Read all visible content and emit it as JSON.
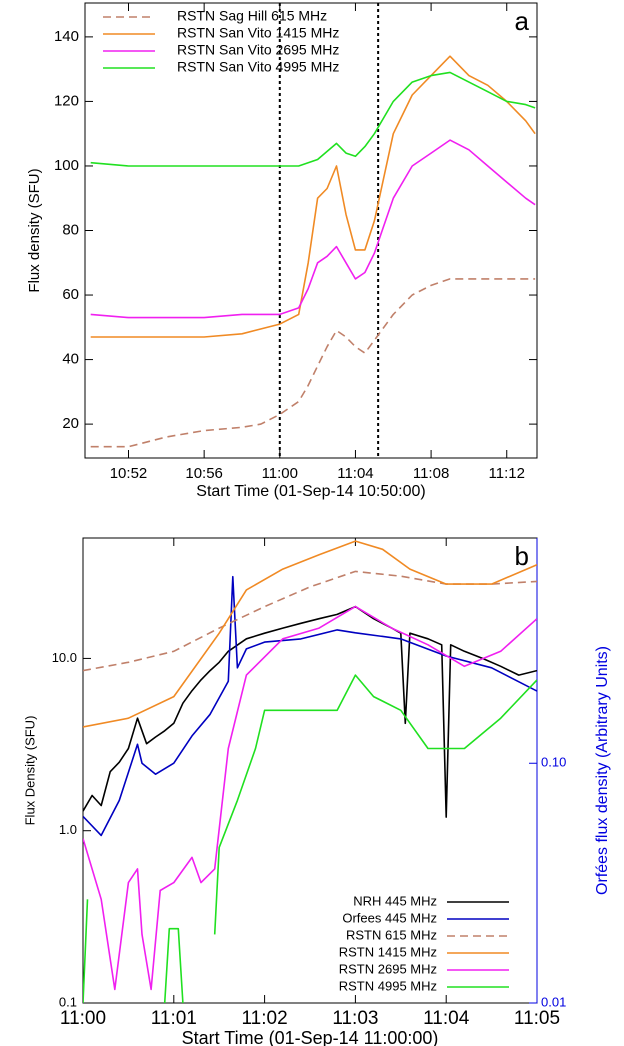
{
  "chart_data": [
    {
      "type": "line",
      "panel_label": "a",
      "xlabel": "Start Time (01-Sep-14 10:50:00)",
      "ylabel": "Flux density (SFU)",
      "xlim": [
        -0.3,
        23.6
      ],
      "ylim": [
        9.5,
        150.5
      ],
      "xticks": [
        {
          "value": 2,
          "label": "10:52"
        },
        {
          "value": 6,
          "label": "10:56"
        },
        {
          "value": 10,
          "label": "11:00"
        },
        {
          "value": 14,
          "label": "11:04"
        },
        {
          "value": 18,
          "label": "11:08"
        },
        {
          "value": 22,
          "label": "11:12"
        }
      ],
      "yticks": [
        20,
        40,
        60,
        80,
        100,
        120,
        140
      ],
      "vlines": [
        10,
        15.2
      ],
      "legend": "upper left",
      "series": [
        {
          "name": "RSTN Sag Hill 615 MHz",
          "color": "#c0806a",
          "linestyle": "dashed",
          "x": [
            0,
            2,
            4,
            6,
            8,
            9,
            10,
            11,
            11.5,
            12,
            12.5,
            13,
            13.5,
            14,
            14.5,
            15,
            16,
            17,
            18,
            19,
            20,
            21,
            22,
            23.5
          ],
          "values": [
            13,
            13,
            16,
            18,
            19,
            20,
            23,
            27,
            32,
            38,
            44,
            49,
            47,
            44,
            42,
            46,
            54,
            60,
            63,
            65,
            65,
            65,
            65,
            65
          ]
        },
        {
          "name": "RSTN San Vito 1415 MHz",
          "color": "#f08a24",
          "linestyle": "solid",
          "x": [
            0,
            2,
            4,
            6,
            8,
            10,
            11,
            11.5,
            12,
            12.5,
            13,
            13.5,
            14,
            14.5,
            15,
            16,
            17,
            18,
            19,
            20,
            21,
            22,
            23,
            23.5
          ],
          "values": [
            47,
            47,
            47,
            47,
            48,
            51,
            54,
            70,
            90,
            93,
            100,
            85,
            74,
            74,
            83,
            110,
            122,
            128,
            134,
            128,
            125,
            120,
            114,
            110
          ]
        },
        {
          "name": "RSTN San Vito 2695 MHz",
          "color": "#f020f0",
          "linestyle": "solid",
          "x": [
            0,
            2,
            4,
            6,
            8,
            10,
            11,
            11.5,
            12,
            12.5,
            13,
            13.5,
            14,
            14.5,
            15,
            16,
            17,
            18,
            19,
            20,
            21,
            22,
            23,
            23.5
          ],
          "values": [
            54,
            53,
            53,
            53,
            54,
            54,
            56,
            62,
            70,
            72,
            75,
            70,
            65,
            67,
            73,
            90,
            100,
            104,
            108,
            105,
            100,
            95,
            90,
            88
          ]
        },
        {
          "name": "RSTN San Vito 4995 MHz",
          "color": "#20e020",
          "linestyle": "solid",
          "x": [
            0,
            2,
            4,
            6,
            8,
            10,
            11,
            12,
            13,
            13.5,
            14,
            14.5,
            15,
            16,
            17,
            18,
            19,
            20,
            21,
            22,
            23,
            23.5
          ],
          "values": [
            101,
            100,
            100,
            100,
            100,
            100,
            100,
            102,
            107,
            104,
            103,
            106,
            110,
            120,
            126,
            128,
            129,
            126,
            123,
            120,
            119,
            118
          ]
        }
      ]
    },
    {
      "type": "line",
      "panel_label": "b",
      "xlabel": "Start Time (01-Sep-14 11:00:00)",
      "ylabel": "Flux Density (SFU)",
      "y2label": "Orfées flux density (Arbitrary Units)",
      "xlim": [
        0,
        5
      ],
      "ylim": [
        0.1,
        50
      ],
      "y2lim": [
        0.01,
        0.87
      ],
      "yscale": "log",
      "y2scale": "log",
      "xticks": [
        {
          "value": 0,
          "label": "11:00"
        },
        {
          "value": 1,
          "label": "11:01"
        },
        {
          "value": 2,
          "label": "11:02"
        },
        {
          "value": 3,
          "label": "11:03"
        },
        {
          "value": 4,
          "label": "11:04"
        },
        {
          "value": 5,
          "label": "11:05"
        }
      ],
      "yticks": [
        0.1,
        {
          "value": 1,
          "label": "1.0"
        },
        {
          "value": 10,
          "label": "10.0"
        }
      ],
      "y2ticks": [
        0.01,
        {
          "value": 0.1,
          "label": "0.10"
        }
      ],
      "y2color": "#0000e0",
      "legend": "lower right",
      "series": [
        {
          "name": "NRH 445 MHz",
          "color": "#000000",
          "linestyle": "solid",
          "x": [
            0,
            0.1,
            0.2,
            0.3,
            0.4,
            0.5,
            0.6,
            0.7,
            0.8,
            0.9,
            1.0,
            1.1,
            1.2,
            1.3,
            1.4,
            1.5,
            1.6,
            1.8,
            2.0,
            2.2,
            2.4,
            2.6,
            2.8,
            3.0,
            3.2,
            3.4,
            3.5,
            3.55,
            3.6,
            3.8,
            3.95,
            4.0,
            4.05,
            4.2,
            4.4,
            4.6,
            4.8,
            5.0
          ],
          "values": [
            1.3,
            1.6,
            1.4,
            2.2,
            2.5,
            3,
            4.5,
            3.2,
            3.5,
            3.8,
            4.2,
            5.5,
            6.5,
            7.5,
            8.5,
            9.5,
            11,
            13,
            14,
            15,
            16,
            17,
            18,
            20,
            17,
            15,
            14,
            4.2,
            14,
            13,
            12,
            1.2,
            12,
            11,
            10,
            9,
            8,
            8.5
          ]
        },
        {
          "name": "Orfees 445 MHz",
          "color": "#0000c0",
          "linestyle": "solid",
          "axis": "y2",
          "x": [
            0,
            0.2,
            0.4,
            0.6,
            0.65,
            0.8,
            1.0,
            1.2,
            1.4,
            1.6,
            1.65,
            1.7,
            1.8,
            2.0,
            2.4,
            2.8,
            3.0,
            3.5,
            4.0,
            4.5,
            5.0
          ],
          "values": [
            0.06,
            0.05,
            0.07,
            0.12,
            0.1,
            0.09,
            0.1,
            0.13,
            0.16,
            0.22,
            0.6,
            0.25,
            0.3,
            0.32,
            0.33,
            0.36,
            0.35,
            0.33,
            0.28,
            0.25,
            0.2
          ]
        },
        {
          "name": "RSTN 615 MHz",
          "color": "#c0806a",
          "linestyle": "dashed",
          "x": [
            0,
            0.5,
            1,
            1.5,
            2,
            2.5,
            3,
            3.5,
            4,
            4.5,
            5
          ],
          "values": [
            8.5,
            9.5,
            11,
            15,
            20,
            26,
            32,
            30,
            27,
            27,
            28
          ]
        },
        {
          "name": "RSTN 1415 MHz",
          "color": "#f08a24",
          "linestyle": "solid",
          "x": [
            0,
            0.5,
            1,
            1.5,
            1.8,
            2.2,
            2.6,
            3,
            3.3,
            3.6,
            4,
            4.5,
            5
          ],
          "values": [
            4,
            4.5,
            6,
            14,
            25,
            33,
            40,
            48,
            43,
            33,
            27,
            27,
            35
          ]
        },
        {
          "name": "RSTN 2695 MHz",
          "color": "#f020f0",
          "linestyle": "solid",
          "x": [
            0,
            0.2,
            0.35,
            0.5,
            0.6,
            0.65,
            0.75,
            0.85,
            1.0,
            1.2,
            1.3,
            1.45,
            1.6,
            1.8,
            2.2,
            2.6,
            3.0,
            3.4,
            3.8,
            4.2,
            4.6,
            5.0
          ],
          "values": [
            0.9,
            0.4,
            0.12,
            0.5,
            0.6,
            0.25,
            0.12,
            0.45,
            0.5,
            0.7,
            0.5,
            0.6,
            3,
            8,
            13,
            15,
            20,
            15,
            12,
            9,
            11,
            17
          ]
        },
        {
          "name": "RSTN 4995 MHz",
          "color": "#20e020",
          "linestyle": "solid",
          "x": [
            0,
            0.05,
            0.1,
            0.9,
            0.95,
            1.05,
            1.1,
            1.2,
            1.45,
            1.5,
            1.7,
            1.9,
            2.0,
            2.5,
            2.8,
            3.0,
            3.2,
            3.5,
            3.8,
            4.2,
            4.6,
            5.0
          ],
          "values": [
            0.1,
            0.4,
            null,
            0.1,
            0.27,
            0.27,
            0.1,
            null,
            0.25,
            0.8,
            1.5,
            3,
            5,
            5,
            5,
            8,
            6,
            5,
            3,
            3,
            4.5,
            7.5
          ]
        }
      ]
    }
  ]
}
